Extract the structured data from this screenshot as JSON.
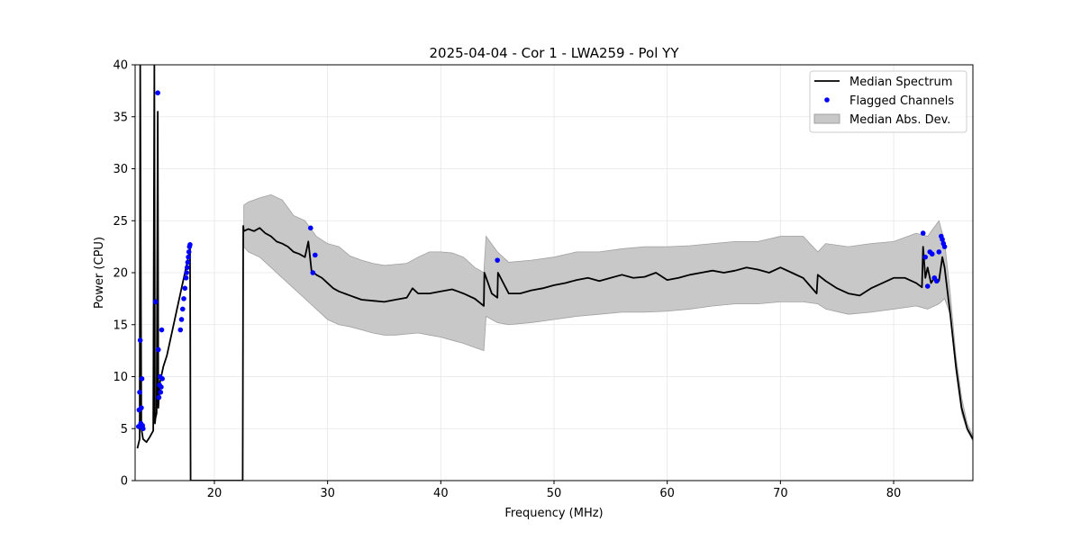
{
  "chart_data": {
    "type": "line",
    "title": "2025-04-04 - Cor 1 - LWA259 - Pol YY",
    "xlabel": "Frequency (MHz)",
    "ylabel": "Power (CPU)",
    "xlim": [
      13.0,
      87.0
    ],
    "ylim": [
      0,
      40
    ],
    "xticks": [
      20,
      30,
      40,
      50,
      60,
      70,
      80
    ],
    "yticks": [
      0,
      5,
      10,
      15,
      20,
      25,
      30,
      35,
      40
    ],
    "grid": true,
    "legend_position": "top-right",
    "legend": {
      "median": "Median Spectrum",
      "flagged": "Flagged Channels",
      "mad": "Median Abs. Dev."
    },
    "colors": {
      "median": "#000000",
      "flagged": "#0000ff",
      "mad_fill": "#c8c8c8",
      "mad_edge": "#a0a0a0",
      "grid": "#e6e6e6"
    },
    "series": [
      {
        "name": "Median Spectrum",
        "x": [
          13.2,
          13.4,
          13.45,
          13.55,
          13.7,
          14.0,
          14.3,
          14.6,
          14.7,
          14.75,
          14.8,
          14.9,
          15.0,
          15.05,
          15.1,
          15.2,
          15.3,
          15.5,
          15.8,
          16.2,
          16.6,
          17.0,
          17.4,
          17.8,
          17.85,
          17.9,
          20.0,
          22.5,
          22.55,
          22.6,
          23.0,
          23.5,
          24.0,
          24.5,
          25.0,
          25.5,
          26.0,
          26.5,
          27.0,
          27.5,
          28.0,
          28.3,
          28.5,
          28.6,
          28.8,
          29.0,
          29.5,
          30.0,
          30.5,
          31.0,
          31.5,
          32.0,
          32.5,
          33.0,
          34.0,
          35.0,
          36.0,
          37.0,
          37.5,
          38.0,
          39.0,
          40.0,
          41.0,
          42.0,
          43.0,
          43.8,
          43.85,
          44.5,
          45.0,
          45.05,
          46.0,
          47.0,
          48.0,
          49.0,
          50.0,
          51.0,
          52.0,
          53.0,
          54.0,
          55.0,
          56.0,
          57.0,
          58.0,
          59.0,
          60.0,
          61.0,
          62.0,
          63.0,
          64.0,
          65.0,
          66.0,
          67.0,
          68.0,
          69.0,
          70.0,
          71.0,
          72.0,
          73.2,
          73.3,
          74.0,
          75.0,
          76.0,
          77.0,
          78.0,
          79.0,
          80.0,
          81.0,
          82.0,
          82.5,
          82.6,
          82.8,
          83.0,
          83.3,
          83.6,
          84.0,
          84.3,
          84.5,
          85.0,
          85.5,
          86.0,
          86.5,
          87.0
        ],
        "y": [
          3.1,
          4.0,
          40.0,
          5.0,
          4.0,
          3.7,
          4.2,
          4.8,
          40.0,
          5.5,
          6.0,
          6.5,
          35.5,
          7.0,
          8.0,
          9.5,
          10.0,
          11.0,
          12.0,
          14.0,
          16.0,
          18.0,
          20.0,
          22.0,
          22.5,
          0.0,
          0.0,
          0.0,
          24.5,
          24.0,
          24.2,
          24.0,
          24.3,
          23.8,
          23.5,
          23.0,
          22.8,
          22.5,
          22.0,
          21.8,
          21.5,
          23.0,
          21.0,
          20.0,
          20.0,
          19.8,
          19.5,
          19.0,
          18.5,
          18.2,
          18.0,
          17.8,
          17.6,
          17.4,
          17.3,
          17.2,
          17.4,
          17.6,
          18.5,
          18.0,
          18.0,
          18.2,
          18.4,
          18.0,
          17.5,
          16.8,
          20.0,
          18.0,
          17.6,
          20.0,
          18.0,
          18.0,
          18.3,
          18.5,
          18.8,
          19.0,
          19.3,
          19.5,
          19.2,
          19.5,
          19.8,
          19.5,
          19.6,
          20.0,
          19.3,
          19.5,
          19.8,
          20.0,
          20.2,
          20.0,
          20.2,
          20.5,
          20.3,
          20.0,
          20.5,
          20.0,
          19.5,
          18.0,
          19.8,
          19.2,
          18.5,
          18.0,
          17.8,
          18.5,
          19.0,
          19.5,
          19.5,
          19.0,
          18.6,
          22.5,
          19.5,
          20.5,
          19.0,
          19.5,
          19.2,
          21.5,
          20.5,
          16.0,
          11.0,
          7.0,
          5.0,
          4.0
        ]
      },
      {
        "name": "Median Abs. Dev.",
        "x": [
          22.6,
          23.0,
          24.0,
          25.0,
          26.0,
          27.0,
          28.0,
          29.0,
          30.0,
          31.0,
          32.0,
          33.0,
          34.0,
          35.0,
          36.0,
          37.0,
          38.0,
          39.0,
          40.0,
          41.0,
          42.0,
          43.0,
          43.8,
          44.0,
          45.0,
          46.0,
          48.0,
          50.0,
          52.0,
          54.0,
          56.0,
          58.0,
          60.0,
          62.0,
          64.0,
          66.0,
          68.0,
          70.0,
          72.0,
          73.3,
          74.0,
          76.0,
          78.0,
          80.0,
          82.0,
          83.0,
          84.0,
          84.5,
          85.0,
          85.5,
          86.0,
          86.5,
          87.0
        ],
        "upper": [
          26.5,
          26.8,
          27.2,
          27.5,
          27.0,
          25.5,
          25.0,
          23.5,
          22.8,
          22.5,
          21.6,
          21.2,
          20.9,
          20.7,
          20.8,
          20.9,
          21.5,
          22.0,
          22.0,
          21.9,
          21.5,
          20.5,
          20.0,
          23.5,
          22.0,
          21.0,
          21.2,
          21.5,
          22.0,
          22.0,
          22.3,
          22.5,
          22.5,
          22.6,
          22.8,
          23.0,
          23.0,
          23.5,
          23.5,
          22.0,
          22.8,
          22.5,
          22.8,
          23.0,
          23.8,
          23.5,
          25.0,
          23.0,
          18.0,
          12.0,
          8.0,
          5.5,
          4.3
        ],
        "lower": [
          22.5,
          22.0,
          21.5,
          20.5,
          19.5,
          18.5,
          17.5,
          16.5,
          15.5,
          15.0,
          14.8,
          14.5,
          14.2,
          14.0,
          14.0,
          14.1,
          14.2,
          14.0,
          13.8,
          13.5,
          13.2,
          12.8,
          12.5,
          15.8,
          15.2,
          15.0,
          15.2,
          15.5,
          15.8,
          16.0,
          16.2,
          16.2,
          16.3,
          16.5,
          16.8,
          17.0,
          17.0,
          17.2,
          17.2,
          17.0,
          16.5,
          16.0,
          16.2,
          16.5,
          16.8,
          16.5,
          17.0,
          17.5,
          16.0,
          10.5,
          6.5,
          4.8,
          3.8
        ]
      }
    ],
    "flagged_channels": {
      "x": [
        13.3,
        13.35,
        13.4,
        13.45,
        13.5,
        13.55,
        13.6,
        13.65,
        13.7,
        14.8,
        15.0,
        15.05,
        15.1,
        15.15,
        15.2,
        15.25,
        15.3,
        15.35,
        15.4,
        17.0,
        17.1,
        17.2,
        17.3,
        17.4,
        17.5,
        17.55,
        17.6,
        17.65,
        17.7,
        17.75,
        17.8,
        17.85,
        28.5,
        28.7,
        28.9,
        45.0,
        82.6,
        82.8,
        83.0,
        83.2,
        83.4,
        83.6,
        83.8,
        84.0,
        84.2,
        84.3,
        84.4,
        84.5
      ],
      "y": [
        5.2,
        6.8,
        8.5,
        13.5,
        5.5,
        7.0,
        9.8,
        5.3,
        5.0,
        17.2,
        37.3,
        12.6,
        8.0,
        9.2,
        10.0,
        8.5,
        9.0,
        14.5,
        9.8,
        14.5,
        15.5,
        16.5,
        17.5,
        18.5,
        19.5,
        20.0,
        20.5,
        21.0,
        21.5,
        22.0,
        22.5,
        22.7,
        24.3,
        20.0,
        21.7,
        21.2,
        23.8,
        21.5,
        18.7,
        22.0,
        21.8,
        19.5,
        19.2,
        22.0,
        23.5,
        23.2,
        22.8,
        22.5
      ]
    }
  }
}
